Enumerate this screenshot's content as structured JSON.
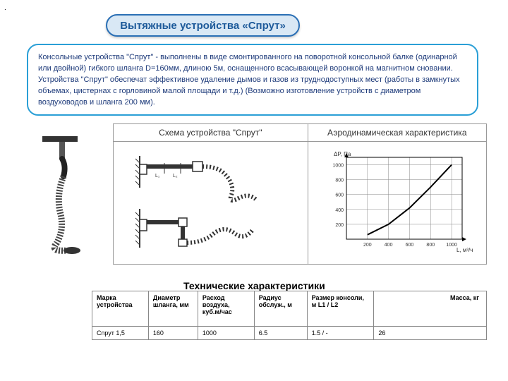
{
  "dot": ".",
  "title": "Вытяжные устройства «Спрут»",
  "description": "Консольные устройства \"Спрут\" - выполнены в виде смонтированного на поворотной консольной балке (одинарной или двойной) гибкого шланга D=160мм, длиною 5м, оснащенного всасывающей воронкой на магнитном сновании. Устройства \"Спрут\" обеспечат эффективное удаление дымов и газов из труднодоступных мест (работы в замкнутых объемах, цистернах с горловиной малой площади и т.д.) (Возможно изготовление устройств с диаметром воздуховодов и шланга 200 мм).",
  "diagram_headers": {
    "left": "Схема устройства \"Спрут\"",
    "right": "Аэродинамическая характеристика"
  },
  "tech_title": "Технические\nхарактеристики",
  "spec_headers": {
    "c1": "Марка устройства",
    "c2": "Диаметр шланга, мм",
    "c3": "Расход воздуха, куб.м/час",
    "c4": "Радиус обслуж., м",
    "c5": "Размер консоли, м L1 / L2",
    "c6": "Масса, кг"
  },
  "spec_row": {
    "c1": "Спрут 1,5",
    "c2": "160",
    "c3": "1000",
    "c4": "6.5",
    "c5": "1.5 / -",
    "c6": "26"
  },
  "chart": {
    "y_label": "ΔP, Па",
    "x_label": "L, м³/ч",
    "x_ticks": [
      200,
      400,
      600,
      800,
      1000
    ],
    "y_ticks": [
      200,
      400,
      600,
      800,
      1000
    ],
    "xlim": [
      0,
      1100
    ],
    "ylim": [
      0,
      1100
    ],
    "curve": [
      [
        200,
        60
      ],
      [
        400,
        200
      ],
      [
        600,
        420
      ],
      [
        800,
        700
      ],
      [
        1000,
        1000
      ]
    ],
    "grid_color": "#888888",
    "line_color": "#000000",
    "background": "#ffffff",
    "axis_fontsize": 7
  },
  "colors": {
    "pill_bg": "#d9e8f5",
    "pill_border": "#2a6fb5",
    "pill_text": "#1d5a9a",
    "desc_border": "#2a9fd6",
    "desc_text": "#1d3a7a"
  }
}
